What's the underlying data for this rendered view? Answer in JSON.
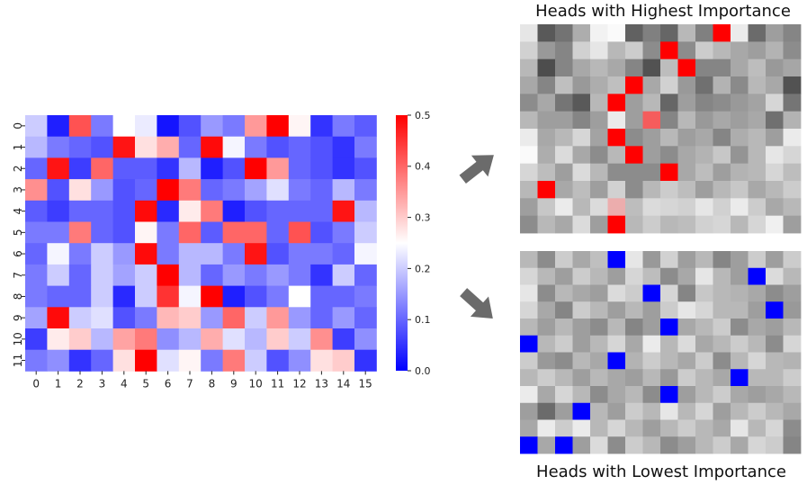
{
  "heatmap": {
    "type": "heatmap",
    "x_ticks": [
      "0",
      "1",
      "2",
      "3",
      "4",
      "5",
      "6",
      "7",
      "8",
      "9",
      "10",
      "11",
      "12",
      "13",
      "14",
      "15"
    ],
    "y_ticks": [
      "0",
      "1",
      "2",
      "3",
      "4",
      "5",
      "6",
      "7",
      "8",
      "9",
      "10",
      "11"
    ],
    "colorbar": {
      "ticks": [
        "0.0",
        "0.1",
        "0.2",
        "0.3",
        "0.4",
        "0.5"
      ],
      "min": 0.0,
      "max": 0.5,
      "colors": [
        "#0000ff",
        "#ffffff",
        "#ff0000"
      ]
    },
    "values": [
      [
        0.2,
        0.03,
        0.42,
        0.12,
        0.25,
        0.23,
        0.02,
        0.08,
        0.15,
        0.12,
        0.35,
        0.5,
        0.26,
        0.05,
        0.12,
        0.09
      ],
      [
        0.18,
        0.12,
        0.1,
        0.08,
        0.48,
        0.28,
        0.33,
        0.1,
        0.49,
        0.24,
        0.12,
        0.08,
        0.1,
        0.08,
        0.05,
        0.12
      ],
      [
        0.1,
        0.48,
        0.06,
        0.4,
        0.09,
        0.09,
        0.05,
        0.18,
        0.03,
        0.08,
        0.5,
        0.35,
        0.1,
        0.08,
        0.05,
        0.08
      ],
      [
        0.36,
        0.08,
        0.28,
        0.15,
        0.08,
        0.1,
        0.5,
        0.38,
        0.1,
        0.12,
        0.16,
        0.22,
        0.12,
        0.1,
        0.18,
        0.12
      ],
      [
        0.09,
        0.06,
        0.1,
        0.1,
        0.08,
        0.49,
        0.04,
        0.27,
        0.38,
        0.03,
        0.08,
        0.1,
        0.1,
        0.1,
        0.48,
        0.18
      ],
      [
        0.12,
        0.12,
        0.38,
        0.1,
        0.08,
        0.26,
        0.12,
        0.4,
        0.09,
        0.4,
        0.4,
        0.1,
        0.42,
        0.08,
        0.12,
        0.2
      ],
      [
        0.1,
        0.24,
        0.12,
        0.2,
        0.15,
        0.49,
        0.12,
        0.18,
        0.18,
        0.12,
        0.48,
        0.08,
        0.12,
        0.12,
        0.1,
        0.24
      ],
      [
        0.12,
        0.2,
        0.1,
        0.2,
        0.16,
        0.2,
        0.5,
        0.18,
        0.1,
        0.15,
        0.12,
        0.15,
        0.12,
        0.05,
        0.2,
        0.1
      ],
      [
        0.12,
        0.1,
        0.1,
        0.2,
        0.04,
        0.2,
        0.45,
        0.24,
        0.5,
        0.03,
        0.08,
        0.12,
        0.25,
        0.1,
        0.1,
        0.12
      ],
      [
        0.16,
        0.49,
        0.2,
        0.22,
        0.08,
        0.12,
        0.32,
        0.3,
        0.15,
        0.4,
        0.2,
        0.35,
        0.15,
        0.1,
        0.15,
        0.1
      ],
      [
        0.06,
        0.27,
        0.3,
        0.18,
        0.34,
        0.38,
        0.14,
        0.18,
        0.33,
        0.22,
        0.18,
        0.3,
        0.2,
        0.36,
        0.06,
        0.14
      ],
      [
        0.12,
        0.14,
        0.05,
        0.1,
        0.28,
        0.5,
        0.22,
        0.26,
        0.12,
        0.38,
        0.2,
        0.08,
        0.14,
        0.28,
        0.3,
        0.05
      ]
    ]
  },
  "panels": [
    {
      "title": "Heads with Highest Importance",
      "highlight": "#ff0000",
      "gray_values": [
        [
          0.9,
          0.35,
          0.45,
          0.68,
          0.95,
          0.98,
          0.38,
          0.5,
          0.4,
          0.72,
          0.5,
          0.62,
          0.92,
          0.42,
          0.62,
          0.52
        ],
        [
          0.82,
          0.6,
          0.52,
          0.82,
          0.9,
          0.72,
          0.8,
          0.55,
          0.9,
          0.55,
          0.8,
          0.72,
          0.66,
          0.62,
          0.7,
          0.55
        ],
        [
          0.72,
          0.3,
          0.52,
          0.66,
          0.72,
          0.66,
          0.52,
          0.32,
          0.74,
          0.55,
          0.52,
          0.52,
          0.66,
          0.74,
          0.6,
          0.65
        ],
        [
          0.66,
          0.52,
          0.75,
          0.6,
          0.68,
          0.75,
          0.52,
          0.66,
          0.82,
          0.6,
          0.44,
          0.7,
          0.54,
          0.72,
          0.66,
          0.32
        ],
        [
          0.55,
          0.66,
          0.46,
          0.35,
          0.72,
          0.55,
          0.62,
          0.72,
          0.4,
          0.62,
          0.52,
          0.55,
          0.6,
          0.64,
          0.84,
          0.46
        ],
        [
          0.72,
          0.62,
          0.62,
          0.52,
          0.62,
          0.92,
          0.62,
          0.68,
          0.52,
          0.72,
          0.6,
          0.66,
          0.62,
          0.66,
          0.44,
          0.7
        ],
        [
          0.92,
          0.66,
          0.72,
          0.84,
          0.64,
          0.72,
          0.55,
          0.62,
          0.72,
          0.62,
          0.66,
          0.52,
          0.68,
          0.72,
          0.62,
          0.92
        ],
        [
          0.98,
          0.68,
          0.86,
          0.66,
          0.55,
          0.72,
          0.82,
          0.62,
          0.55,
          0.66,
          0.7,
          0.78,
          0.58,
          0.72,
          0.9,
          0.84
        ],
        [
          0.84,
          0.74,
          0.62,
          0.86,
          0.72,
          0.55,
          0.55,
          0.55,
          0.62,
          0.66,
          0.74,
          0.62,
          0.7,
          0.72,
          0.84,
          0.74
        ],
        [
          0.72,
          0.8,
          0.66,
          0.74,
          0.62,
          0.82,
          0.55,
          0.72,
          0.8,
          0.74,
          0.62,
          0.72,
          0.78,
          0.66,
          0.72,
          0.8
        ],
        [
          0.62,
          0.78,
          0.92,
          0.72,
          0.86,
          0.8,
          0.74,
          0.86,
          0.84,
          0.82,
          0.9,
          0.82,
          0.92,
          0.8,
          0.66,
          0.72
        ],
        [
          0.55,
          0.72,
          0.66,
          0.86,
          0.62,
          0.66,
          0.72,
          0.8,
          0.72,
          0.74,
          0.82,
          0.84,
          0.72,
          0.84,
          0.94,
          0.62
        ]
      ],
      "highlights": [
        [
          0,
          11
        ],
        [
          1,
          8
        ],
        [
          2,
          9
        ],
        [
          3,
          6
        ],
        [
          4,
          5
        ],
        [
          5,
          7
        ],
        [
          6,
          5
        ],
        [
          7,
          6
        ],
        [
          8,
          8
        ],
        [
          9,
          1
        ],
        [
          10,
          5
        ],
        [
          11,
          5
        ]
      ],
      "highlight_strength": [
        1,
        1,
        1,
        1,
        1,
        0.6,
        1,
        1,
        1,
        1,
        0.25,
        1
      ]
    },
    {
      "title": "Heads with Lowest Importance",
      "highlight": "#0000ff",
      "gray_values": [
        [
          0.72,
          0.55,
          0.8,
          0.66,
          0.75,
          0.9,
          0.9,
          0.6,
          0.82,
          0.62,
          0.72,
          0.52,
          0.62,
          0.8,
          0.62,
          0.8
        ],
        [
          0.84,
          0.72,
          0.62,
          0.8,
          0.72,
          0.62,
          0.84,
          0.74,
          0.55,
          0.66,
          0.9,
          0.72,
          0.62,
          0.7,
          0.86,
          0.72
        ],
        [
          0.9,
          0.55,
          0.72,
          0.66,
          0.62,
          0.86,
          0.8,
          0.55,
          0.84,
          0.52,
          0.78,
          0.72,
          0.7,
          0.66,
          0.55,
          0.62
        ],
        [
          0.84,
          0.66,
          0.52,
          0.8,
          0.72,
          0.62,
          0.72,
          0.62,
          0.8,
          0.9,
          0.84,
          0.72,
          0.72,
          0.62,
          0.8,
          0.6
        ],
        [
          0.72,
          0.62,
          0.72,
          0.62,
          0.55,
          0.72,
          0.52,
          0.62,
          0.9,
          0.66,
          0.72,
          0.8,
          0.55,
          0.66,
          0.62,
          0.72
        ],
        [
          0.62,
          0.72,
          0.8,
          0.62,
          0.72,
          0.84,
          0.66,
          0.92,
          0.72,
          0.86,
          0.66,
          0.72,
          0.8,
          0.72,
          0.55,
          0.84
        ],
        [
          0.8,
          0.6,
          0.55,
          0.72,
          0.66,
          0.55,
          0.7,
          0.8,
          0.72,
          0.66,
          0.8,
          0.55,
          0.72,
          0.84,
          0.72,
          0.7
        ],
        [
          0.72,
          0.8,
          0.72,
          0.62,
          0.72,
          0.66,
          0.62,
          0.72,
          0.6,
          0.8,
          0.72,
          0.66,
          0.62,
          0.72,
          0.72,
          0.8
        ],
        [
          0.92,
          0.66,
          0.84,
          0.72,
          0.55,
          0.66,
          0.72,
          0.55,
          0.66,
          0.62,
          0.72,
          0.8,
          0.66,
          0.62,
          0.66,
          0.72
        ],
        [
          0.62,
          0.42,
          0.62,
          0.66,
          0.72,
          0.62,
          0.8,
          0.72,
          0.9,
          0.72,
          0.84,
          0.62,
          0.72,
          0.8,
          0.72,
          0.66
        ],
        [
          0.66,
          0.92,
          0.8,
          0.92,
          0.72,
          0.84,
          0.72,
          0.62,
          0.72,
          0.8,
          0.72,
          0.66,
          0.9,
          0.72,
          0.84,
          0.55
        ],
        [
          0.72,
          0.66,
          0.8,
          0.62,
          0.86,
          0.55,
          0.8,
          0.72,
          0.55,
          0.62,
          0.72,
          0.8,
          0.66,
          0.84,
          0.8,
          0.52
        ]
      ],
      "highlights": [
        [
          0,
          5
        ],
        [
          1,
          13
        ],
        [
          2,
          7
        ],
        [
          3,
          14
        ],
        [
          4,
          8
        ],
        [
          5,
          0
        ],
        [
          6,
          5
        ],
        [
          8,
          8
        ],
        [
          7,
          12
        ],
        [
          9,
          3
        ],
        [
          11,
          0
        ],
        [
          11,
          2
        ]
      ],
      "highlight_strength": [
        1,
        1,
        1,
        1,
        1,
        1,
        1,
        1,
        1,
        1,
        1,
        1
      ]
    }
  ]
}
